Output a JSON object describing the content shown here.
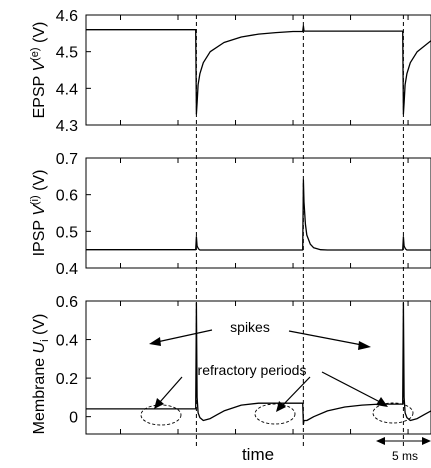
{
  "chart_data": {
    "type": "line",
    "xlabel": "time",
    "scale_bar": "5 ms",
    "spike_times": [
      0.32,
      0.63,
      0.92
    ],
    "panels": [
      {
        "id": "epsp",
        "ylabel_main": "EPSP ",
        "ylabel_var": "V",
        "ylabel_sup": "(e)",
        "ylabel_unit": " (V)",
        "ylim": [
          4.3,
          4.6
        ],
        "ticks": [
          "4.3",
          "4.4",
          "4.5",
          "4.6"
        ],
        "tick_values": [
          4.3,
          4.4,
          4.5,
          4.6
        ],
        "series": [
          {
            "x": [
              0,
              0.05,
              0.1,
              0.2,
              0.3,
              0.318,
              0.32,
              0.322,
              0.325,
              0.33,
              0.34,
              0.36,
              0.4,
              0.45,
              0.5,
              0.55,
              0.6,
              0.628,
              0.63,
              0.632,
              0.635,
              0.64,
              0.65,
              0.7,
              0.8,
              0.9,
              0.918,
              0.92,
              0.922,
              0.925,
              0.93,
              0.94,
              0.96,
              1.0
            ],
            "y": [
              4.56,
              4.56,
              4.56,
              4.56,
              4.56,
              4.56,
              4.33,
              4.36,
              4.41,
              4.44,
              4.47,
              4.5,
              4.525,
              4.54,
              4.548,
              4.552,
              4.555,
              4.555,
              4.57,
              4.556,
              4.556,
              4.556,
              4.556,
              4.556,
              4.556,
              4.556,
              4.556,
              4.33,
              4.36,
              4.41,
              4.44,
              4.47,
              4.5,
              4.53
            ]
          }
        ]
      },
      {
        "id": "ipsp",
        "ylabel_main": "IPSP ",
        "ylabel_var": "V",
        "ylabel_sup": "(i)",
        "ylabel_unit": " (V)",
        "ylim": [
          0.4,
          0.7
        ],
        "ticks": [
          "0.4",
          "0.5",
          "0.6",
          "0.7"
        ],
        "tick_values": [
          0.4,
          0.5,
          0.6,
          0.7
        ],
        "series": [
          {
            "x": [
              0,
              0.1,
              0.2,
              0.3,
              0.318,
              0.32,
              0.322,
              0.326,
              0.33,
              0.35,
              0.4,
              0.5,
              0.6,
              0.628,
              0.63,
              0.632,
              0.636,
              0.64,
              0.65,
              0.66,
              0.68,
              0.7,
              0.8,
              0.9,
              0.918,
              0.92,
              0.922,
              0.926,
              0.93,
              0.95,
              1.0
            ],
            "y": [
              0.45,
              0.45,
              0.45,
              0.45,
              0.45,
              0.485,
              0.46,
              0.452,
              0.449,
              0.449,
              0.449,
              0.449,
              0.449,
              0.449,
              0.64,
              0.58,
              0.52,
              0.49,
              0.465,
              0.455,
              0.45,
              0.449,
              0.449,
              0.449,
              0.449,
              0.485,
              0.46,
              0.452,
              0.449,
              0.449,
              0.449
            ]
          }
        ]
      },
      {
        "id": "membrane",
        "ylabel_main": "Membrane ",
        "ylabel_var": "U",
        "ylabel_sub": "i",
        "ylabel_unit": " (V)",
        "ylim": [
          -0.09,
          0.6
        ],
        "ticks": [
          "0",
          "0.2",
          "0.4",
          "0.6"
        ],
        "tick_values": [
          0,
          0.2,
          0.4,
          0.6
        ],
        "series": [
          {
            "x": [
              0,
              0.05,
              0.1,
              0.2,
              0.3,
              0.318,
              0.32,
              0.322,
              0.325,
              0.33,
              0.34,
              0.36,
              0.38,
              0.4,
              0.45,
              0.5,
              0.55,
              0.6,
              0.628,
              0.63,
              0.632,
              0.64,
              0.66,
              0.7,
              0.75,
              0.8,
              0.85,
              0.9,
              0.918,
              0.92,
              0.922,
              0.925,
              0.93,
              0.94,
              0.96,
              0.98,
              1.0
            ],
            "y": [
              0.04,
              0.04,
              0.04,
              0.04,
              0.04,
              0.04,
              0.59,
              0.1,
              0.02,
              -0.005,
              -0.02,
              -0.01,
              0.01,
              0.03,
              0.06,
              0.07,
              0.07,
              0.07,
              0.07,
              -0.04,
              -0.02,
              -0.02,
              0.0,
              0.03,
              0.05,
              0.06,
              0.065,
              0.065,
              0.065,
              0.59,
              0.1,
              0.02,
              -0.005,
              -0.02,
              -0.01,
              0.01,
              0.03
            ]
          }
        ]
      }
    ],
    "annotations": [
      {
        "text": "spikes"
      },
      {
        "text": "refractory periods"
      }
    ]
  }
}
